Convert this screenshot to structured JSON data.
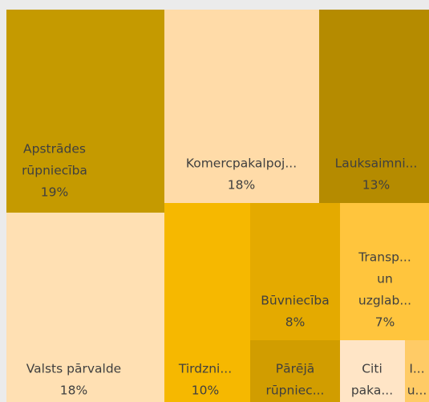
{
  "chart_data": {
    "type": "treemap",
    "categories": [
      [
        "Apstrādes",
        "rūpniecība"
      ],
      [
        "Valsts pārvalde"
      ],
      [
        "Komercpakalpoj..."
      ],
      [
        "Lauksaimni..."
      ],
      [
        "Tirdzni..."
      ],
      [
        "Būvniecība"
      ],
      [
        "Transp...",
        "un",
        "uzglab..."
      ],
      [
        "Pārējā",
        "rūpniec..."
      ],
      [
        "Citi",
        "paka..."
      ],
      [
        "I...",
        "u..."
      ]
    ],
    "values": [
      19,
      18,
      18,
      13,
      10,
      8,
      7,
      3,
      2,
      1
    ],
    "value_labels": [
      "19%",
      "18%",
      "18%",
      "13%",
      "10%",
      "8%",
      "7%",
      null,
      null,
      null
    ],
    "colors": [
      "#c59a00",
      "#ffe0b3",
      "#ffdba8",
      "#b58b00",
      "#f6b800",
      "#e4aa00",
      "#ffc53d",
      "#d19d00",
      "#ffe5c6",
      "#ffcb66"
    ]
  }
}
